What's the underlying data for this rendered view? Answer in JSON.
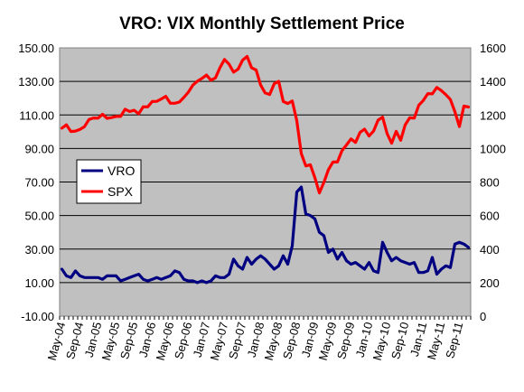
{
  "chart_data": {
    "type": "line",
    "title": "VRO: VIX Monthly Settlement Price",
    "xlabel": "",
    "ylabel_left": "",
    "ylabel_right": "",
    "ylim_left": [
      -10,
      150
    ],
    "ylim_right": [
      0,
      1600
    ],
    "left_ticks": [
      "150.00",
      "130.00",
      "110.00",
      "90.00",
      "70.00",
      "50.00",
      "30.00",
      "10.00",
      "-10.00"
    ],
    "right_ticks": [
      "1600",
      "1400",
      "1200",
      "1000",
      "800",
      "600",
      "400",
      "200",
      "0"
    ],
    "x_tick_labels": [
      "May-04",
      "Sep-04",
      "Jan-05",
      "May-05",
      "Sep-05",
      "Jan-06",
      "May-06",
      "Sep-06",
      "Jan-07",
      "May-07",
      "Sep-07",
      "Jan-08",
      "May-08",
      "Sep-08",
      "Jan-09",
      "May-09",
      "Sep-09",
      "Jan-10",
      "May-10",
      "Sep-10",
      "Jan-11",
      "May-11",
      "Sep-11"
    ],
    "months": [
      "May-04",
      "Jun-04",
      "Jul-04",
      "Aug-04",
      "Sep-04",
      "Oct-04",
      "Nov-04",
      "Dec-04",
      "Jan-05",
      "Feb-05",
      "Mar-05",
      "Apr-05",
      "May-05",
      "Jun-05",
      "Jul-05",
      "Aug-05",
      "Sep-05",
      "Oct-05",
      "Nov-05",
      "Dec-05",
      "Jan-06",
      "Feb-06",
      "Mar-06",
      "Apr-06",
      "May-06",
      "Jun-06",
      "Jul-06",
      "Aug-06",
      "Sep-06",
      "Oct-06",
      "Nov-06",
      "Dec-06",
      "Jan-07",
      "Feb-07",
      "Mar-07",
      "Apr-07",
      "May-07",
      "Jun-07",
      "Jul-07",
      "Aug-07",
      "Sep-07",
      "Oct-07",
      "Nov-07",
      "Dec-07",
      "Jan-08",
      "Feb-08",
      "Mar-08",
      "Apr-08",
      "May-08",
      "Jun-08",
      "Jul-08",
      "Aug-08",
      "Sep-08",
      "Oct-08",
      "Nov-08",
      "Dec-08",
      "Jan-09",
      "Feb-09",
      "Mar-09",
      "Apr-09",
      "May-09",
      "Jun-09",
      "Jul-09",
      "Aug-09",
      "Sep-09",
      "Oct-09",
      "Nov-09",
      "Dec-09",
      "Jan-10",
      "Feb-10",
      "Mar-10",
      "Apr-10",
      "May-10",
      "Jun-10",
      "Jul-10",
      "Aug-10",
      "Sep-10",
      "Oct-10",
      "Nov-10",
      "Dec-10",
      "Jan-11",
      "Feb-11",
      "Mar-11",
      "Apr-11",
      "May-11",
      "Jun-11",
      "Jul-11",
      "Aug-11",
      "Sep-11",
      "Oct-11",
      "Nov-11"
    ],
    "grid": true,
    "legend_position": "left-middle",
    "plot_background": "#c0c0c0",
    "series": [
      {
        "name": "VRO",
        "axis": "left",
        "color": "#000080",
        "values": [
          18,
          14,
          13,
          17,
          14,
          13,
          13,
          13,
          13,
          12,
          14,
          14,
          14,
          11,
          12,
          13,
          14,
          15,
          12,
          11,
          12,
          13,
          12,
          13,
          14,
          17,
          16,
          12,
          11,
          11,
          10,
          11,
          10,
          11,
          14,
          13,
          13,
          15,
          24,
          20,
          18,
          25,
          21,
          24,
          26,
          24,
          21,
          18,
          20,
          26,
          21,
          32,
          64,
          67,
          51,
          50,
          48,
          40,
          38,
          28,
          30,
          24,
          28,
          23,
          21,
          22,
          20,
          18,
          22,
          17,
          16,
          34,
          28,
          23,
          25,
          23,
          22,
          21,
          22,
          16,
          16,
          17,
          25,
          15,
          18,
          20,
          19,
          33,
          34,
          33,
          31
        ]
      },
      {
        "name": "SPX",
        "axis": "right",
        "color": "#ff0000",
        "values": [
          1121,
          1141,
          1101,
          1104,
          1114,
          1130,
          1173,
          1182,
          1181,
          1204,
          1180,
          1184,
          1191,
          1191,
          1234,
          1220,
          1228,
          1207,
          1249,
          1248,
          1280,
          1281,
          1295,
          1311,
          1270,
          1270,
          1277,
          1304,
          1336,
          1378,
          1401,
          1418,
          1438,
          1407,
          1421,
          1482,
          1531,
          1503,
          1455,
          1473,
          1527,
          1549,
          1481,
          1468,
          1378,
          1331,
          1322,
          1386,
          1400,
          1280,
          1268,
          1283,
          1166,
          969,
          896,
          903,
          826,
          735,
          798,
          873,
          919,
          919,
          987,
          1021,
          1057,
          1036,
          1096,
          1115,
          1074,
          1104,
          1169,
          1187,
          1089,
          1031,
          1102,
          1049,
          1141,
          1183,
          1181,
          1258,
          1286,
          1327,
          1326,
          1364,
          1345,
          1321,
          1292,
          1219,
          1131,
          1253,
          1247
        ]
      }
    ]
  }
}
